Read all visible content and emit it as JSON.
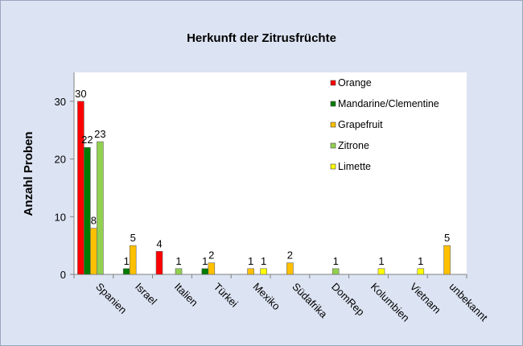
{
  "chart_data": {
    "type": "bar",
    "title": "Herkunft der Zitrusfrüchte",
    "xlabel": "",
    "ylabel": "Anzahl Proben",
    "ylim": [
      0,
      35
    ],
    "yticks": [
      0,
      10,
      20,
      30
    ],
    "grid": false,
    "legend_position": "top-right",
    "categories": [
      "Spanien",
      "Israel",
      "Italien",
      "Türkei",
      "Mexiko",
      "Südafrika",
      "DomRep",
      "Kolumbien",
      "Vietnam",
      "unbekannt"
    ],
    "series": [
      {
        "name": "Orange",
        "color": "#ff0000",
        "values": [
          30,
          0,
          4,
          0,
          0,
          0,
          0,
          0,
          0,
          0
        ]
      },
      {
        "name": "Mandarine/Clementine",
        "color": "#007a00",
        "values": [
          22,
          1,
          0,
          1,
          0,
          0,
          0,
          0,
          0,
          0
        ]
      },
      {
        "name": "Grapefruit",
        "color": "#ffc000",
        "values": [
          8,
          5,
          0,
          2,
          1,
          2,
          0,
          0,
          0,
          5
        ]
      },
      {
        "name": "Zitrone",
        "color": "#92d050",
        "values": [
          23,
          0,
          1,
          0,
          0,
          0,
          1,
          0,
          0,
          0
        ]
      },
      {
        "name": "Limette",
        "color": "#ffff00",
        "values": [
          0,
          0,
          0,
          0,
          1,
          0,
          0,
          1,
          1,
          0
        ]
      }
    ]
  }
}
